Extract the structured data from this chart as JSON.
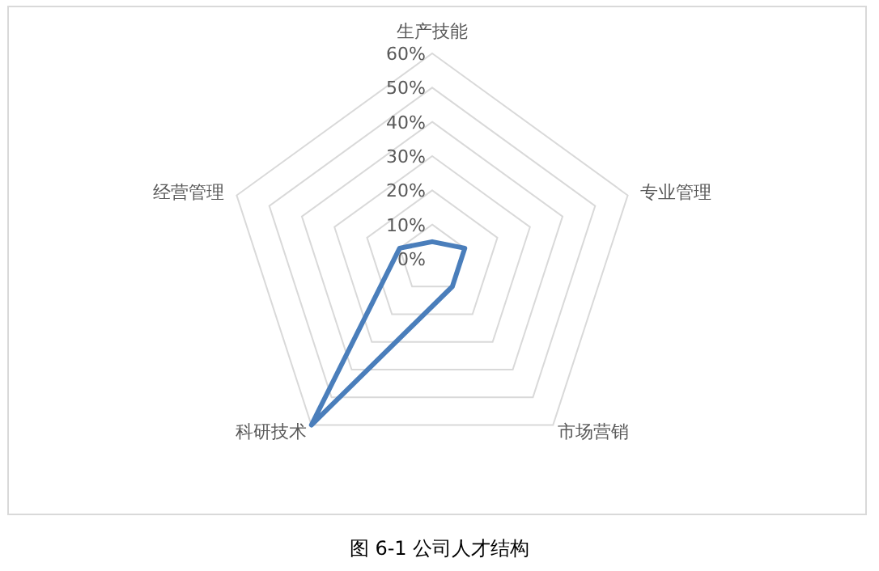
{
  "chart_data": {
    "type": "radar",
    "categories": [
      "生产技能",
      "专业管理",
      "市场营销",
      "科研技术",
      "经营管理"
    ],
    "series": [
      {
        "color": "#4a7ebb",
        "values": [
          5,
          10,
          10,
          60,
          10
        ]
      }
    ],
    "ylim": [
      0,
      60
    ],
    "yticks": [
      {
        "value": 0,
        "label": "0%"
      },
      {
        "value": 10,
        "label": "10%"
      },
      {
        "value": 20,
        "label": "20%"
      },
      {
        "value": 30,
        "label": "30%"
      },
      {
        "value": 40,
        "label": "40%"
      },
      {
        "value": 50,
        "label": "50%"
      },
      {
        "value": 60,
        "label": "60%"
      }
    ],
    "grid": true,
    "annotations": [
      "图 6-1 公司人才结构"
    ]
  }
}
